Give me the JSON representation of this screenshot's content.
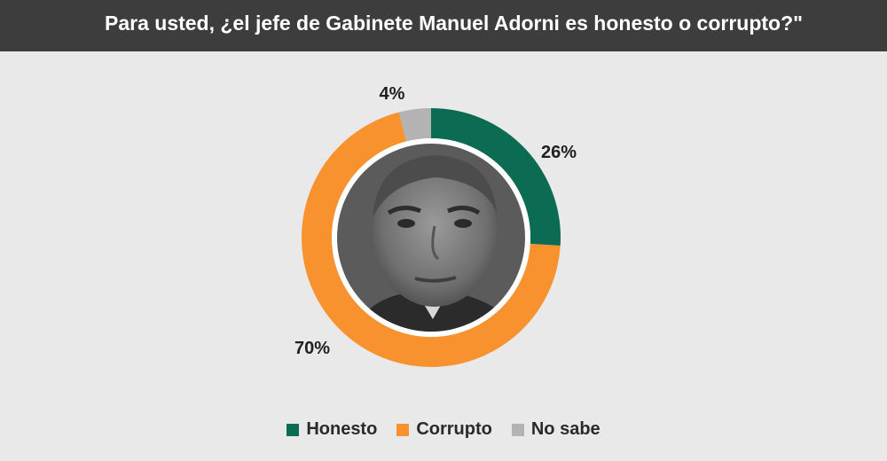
{
  "chart_data": {
    "type": "pie",
    "title": "Para usted, ¿el jefe de Gabinete Manuel Adorni es honesto o corrupto?\"",
    "series": [
      {
        "name": "Honesto",
        "value": 26,
        "label": "26%",
        "color": "#0b6b53"
      },
      {
        "name": "Corrupto",
        "value": 70,
        "label": "70%",
        "color": "#f7922e"
      },
      {
        "name": "No sabe",
        "value": 4,
        "label": "4%",
        "color": "#b3b3b3"
      }
    ],
    "legend_position": "bottom"
  }
}
